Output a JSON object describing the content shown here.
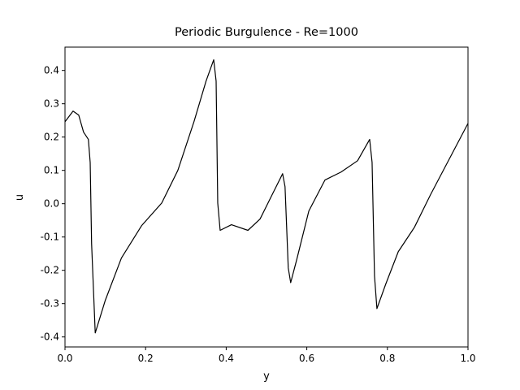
{
  "chart_data": {
    "type": "line",
    "title": "Periodic Burgulence - Re=1000",
    "xlabel": "y",
    "ylabel": "u",
    "x": [
      0,
      0.02,
      0.034,
      0.046,
      0.058,
      0.0625,
      0.066,
      0.075,
      0.1,
      0.14,
      0.19,
      0.24,
      0.28,
      0.32,
      0.35,
      0.369,
      0.375,
      0.379,
      0.385,
      0.413,
      0.454,
      0.484,
      0.514,
      0.54,
      0.546,
      0.554,
      0.56,
      0.575,
      0.605,
      0.645,
      0.685,
      0.726,
      0.756,
      0.762,
      0.768,
      0.774,
      0.796,
      0.827,
      0.867,
      0.907,
      1.0
    ],
    "series": [
      {
        "color": "#000000",
        "values": [
          0.246,
          0.278,
          0.266,
          0.215,
          0.193,
          0.124,
          -0.12,
          -0.388,
          -0.29,
          -0.163,
          -0.066,
          0.002,
          0.1,
          0.246,
          0.368,
          0.432,
          0.368,
          0.002,
          -0.08,
          -0.063,
          -0.08,
          -0.046,
          0.027,
          0.09,
          0.051,
          -0.193,
          -0.237,
          -0.168,
          -0.022,
          0.071,
          0.095,
          0.129,
          0.193,
          0.124,
          -0.217,
          -0.315,
          -0.241,
          -0.144,
          -0.071,
          0.027,
          0.241
        ]
      }
    ],
    "xlim": [
      0,
      1
    ],
    "ylim": [
      -0.43,
      0.47
    ],
    "xticks": [
      {
        "value": 0,
        "label": "0.0"
      },
      0.2,
      0.4,
      0.6,
      0.8,
      {
        "value": 1,
        "label": "1.0"
      }
    ],
    "yticks": [
      -0.4,
      -0.3,
      -0.2,
      -0.1,
      {
        "value": 0,
        "label": "0.0"
      },
      0.1,
      0.2,
      0.3,
      0.4
    ],
    "grid": false
  }
}
